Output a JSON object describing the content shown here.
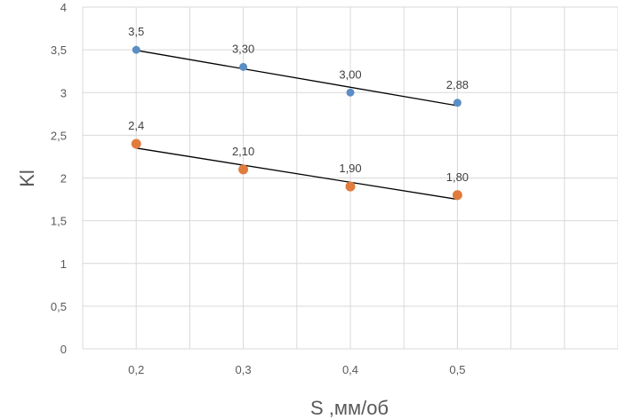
{
  "chart_data": {
    "type": "scatter",
    "title": "",
    "xlabel": "S ,мм/об",
    "ylabel": "Kl",
    "x_ticks": [
      "0,2",
      "0,3",
      "0,4",
      "0,5"
    ],
    "y_ticks": [
      "0",
      "0,5",
      "1",
      "1,5",
      "2",
      "2,5",
      "3",
      "3,5",
      "4"
    ],
    "xlim": [
      0.15,
      0.65
    ],
    "ylim": [
      0,
      4
    ],
    "grid": true,
    "legend": "none",
    "series": [
      {
        "name": "series-1",
        "color": "#5b8ec5",
        "x": [
          0.2,
          0.3,
          0.4,
          0.5
        ],
        "y": [
          3.5,
          3.3,
          3.0,
          2.88
        ],
        "labels": [
          "3,5",
          "3,30",
          "3,00",
          "2,88"
        ],
        "trendline": "linear"
      },
      {
        "name": "series-2",
        "color": "#e07c3e",
        "x": [
          0.2,
          0.3,
          0.4,
          0.5
        ],
        "y": [
          2.4,
          2.1,
          1.9,
          1.8
        ],
        "labels": [
          "2,4",
          "2,10",
          "1,90",
          "1,80"
        ],
        "trendline": "linear"
      }
    ]
  }
}
